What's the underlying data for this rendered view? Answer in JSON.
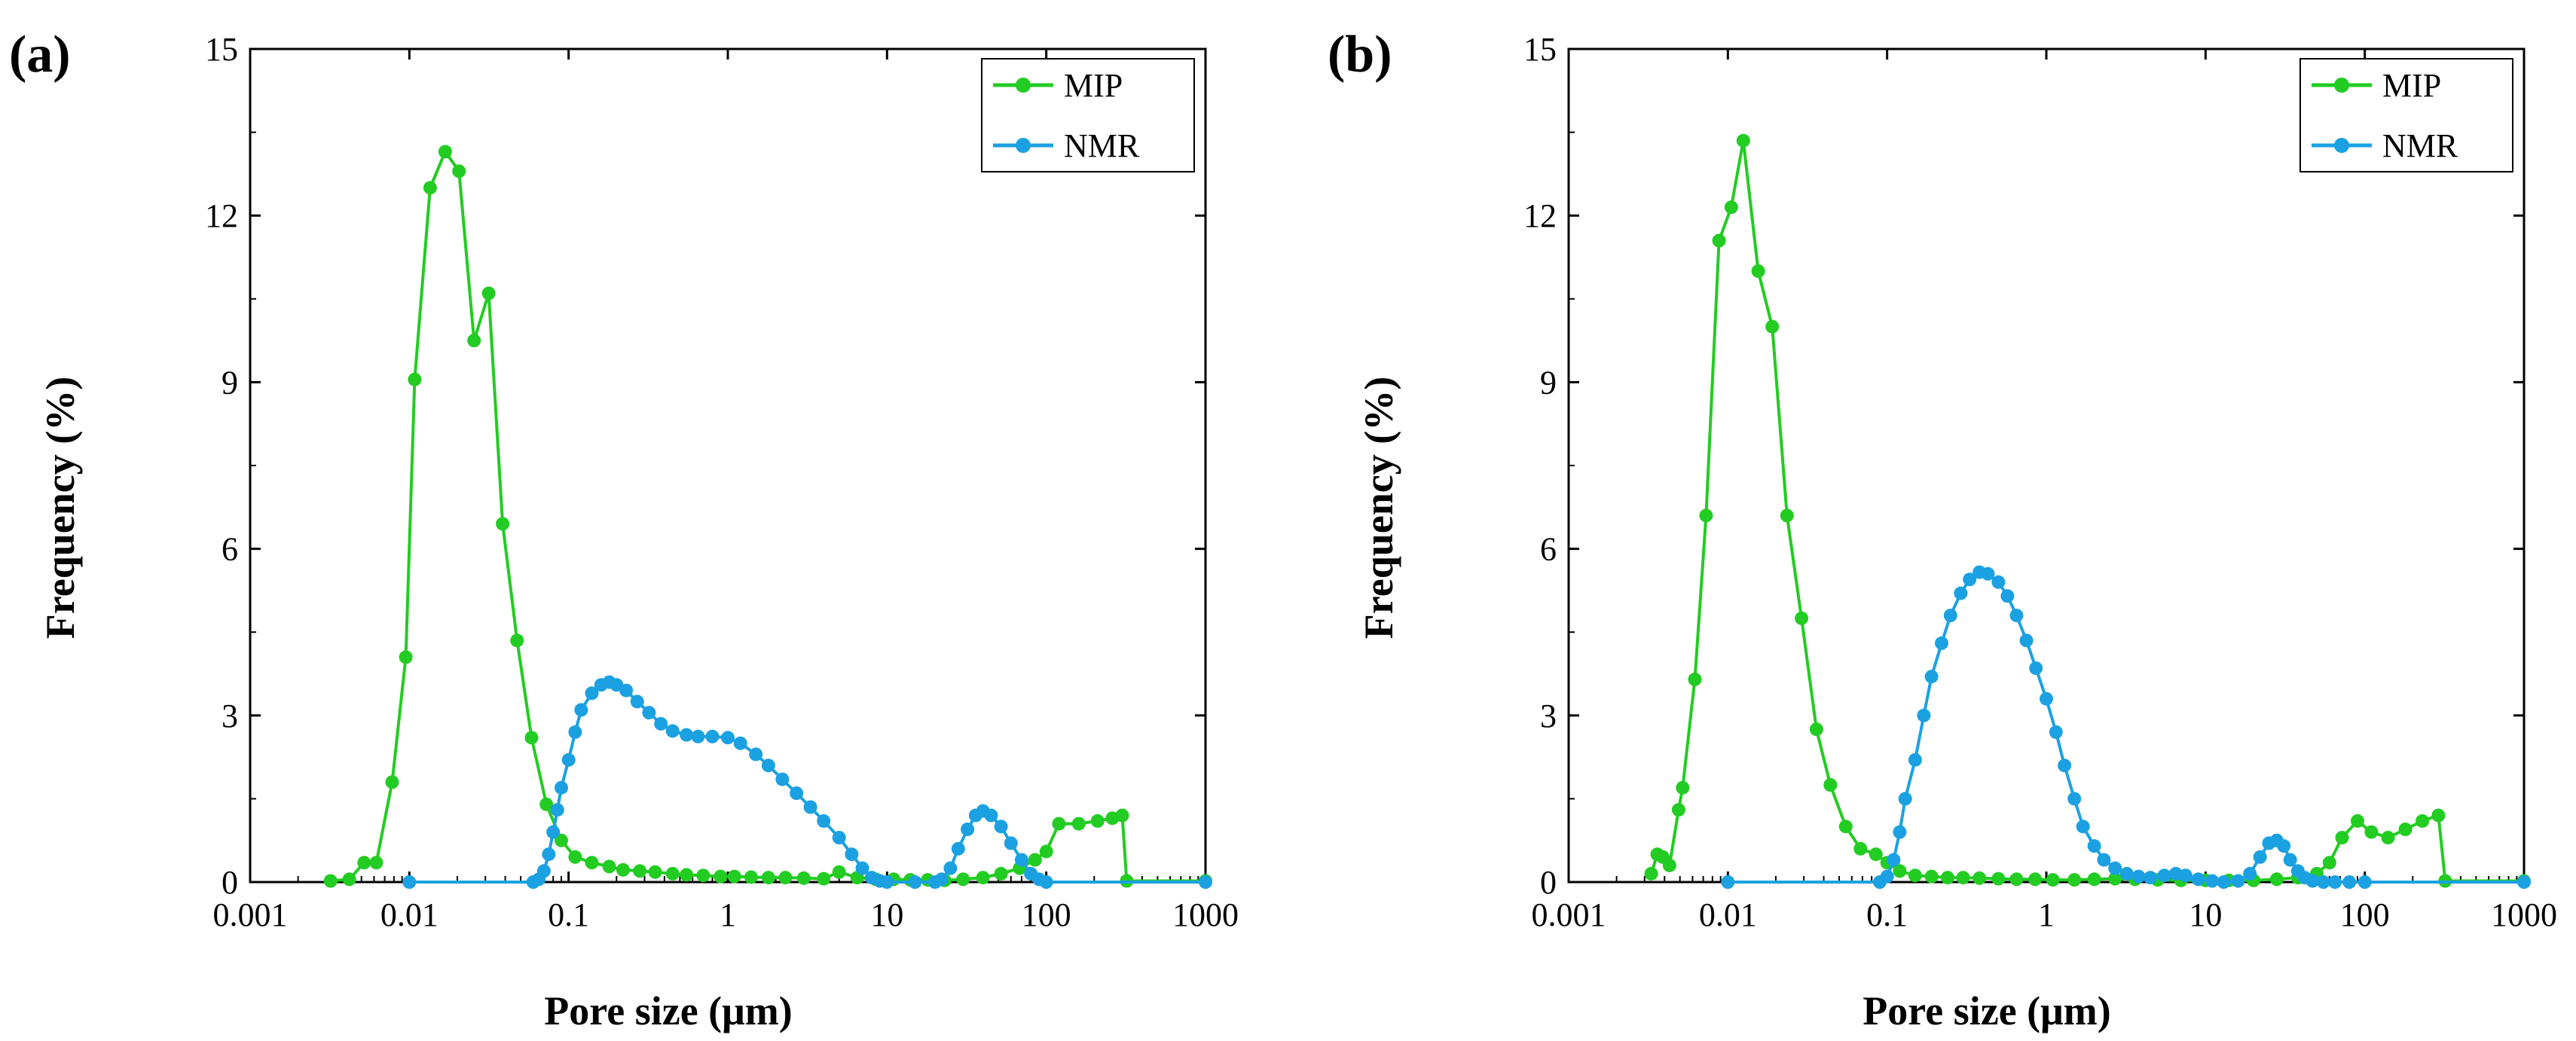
{
  "chart_data": [
    {
      "type": "line",
      "panel_label": "(a)",
      "xlabel": "Pore size (μm)",
      "ylabel": "Frequency (%)",
      "xscale": "log",
      "xlim": [
        0.001,
        1000
      ],
      "ylim": [
        0,
        15
      ],
      "xticks": [
        0.001,
        0.01,
        0.1,
        1,
        10,
        100,
        1000
      ],
      "xtick_labels": [
        "0.001",
        "0.01",
        "0.1",
        "1",
        "10",
        "100",
        "1000"
      ],
      "yticks": [
        0,
        3,
        6,
        9,
        12,
        15
      ],
      "ytick_labels": [
        "0",
        "3",
        "6",
        "9",
        "12",
        "15"
      ],
      "grid": false,
      "legend_position": "top-right",
      "series": [
        {
          "name": "MIP",
          "color": "#22cc22",
          "x": [
            0.0032,
            0.0042,
            0.0052,
            0.0062,
            0.0078,
            0.0095,
            0.0108,
            0.0135,
            0.0168,
            0.0205,
            0.0255,
            0.0315,
            0.0385,
            0.0475,
            0.0585,
            0.0725,
            0.09,
            0.11,
            0.14,
            0.18,
            0.22,
            0.28,
            0.35,
            0.45,
            0.55,
            0.7,
            0.9,
            1.1,
            1.4,
            1.8,
            2.3,
            3,
            4,
            5,
            6.5,
            8.5,
            11,
            14,
            18,
            23,
            30,
            40,
            52,
            68,
            85,
            100,
            120,
            160,
            210,
            260,
            300,
            320,
            1000
          ],
          "y": [
            0.02,
            0.05,
            0.35,
            0.35,
            1.8,
            4.05,
            9.05,
            12.5,
            13.15,
            12.8,
            9.75,
            10.6,
            6.45,
            4.35,
            2.6,
            1.4,
            0.75,
            0.45,
            0.35,
            0.28,
            0.22,
            0.2,
            0.18,
            0.15,
            0.13,
            0.12,
            0.1,
            0.1,
            0.09,
            0.08,
            0.08,
            0.07,
            0.06,
            0.18,
            0.08,
            0.05,
            0.05,
            0.04,
            0.04,
            0.03,
            0.05,
            0.08,
            0.15,
            0.25,
            0.4,
            0.55,
            1.05,
            1.05,
            1.1,
            1.15,
            1.2,
            0.02,
            0.02
          ]
        },
        {
          "name": "NMR",
          "color": "#1ba1e2",
          "x": [
            0.01,
            0.06,
            0.065,
            0.07,
            0.075,
            0.08,
            0.085,
            0.09,
            0.1,
            0.11,
            0.12,
            0.14,
            0.16,
            0.18,
            0.2,
            0.23,
            0.27,
            0.32,
            0.38,
            0.45,
            0.55,
            0.65,
            0.8,
            1,
            1.2,
            1.5,
            1.8,
            2.2,
            2.7,
            3.3,
            4,
            5,
            6,
            7,
            8,
            9,
            10,
            15,
            20,
            22,
            25,
            28,
            32,
            36,
            40,
            45,
            52,
            60,
            70,
            80,
            90,
            100,
            1000
          ],
          "y": [
            0,
            0,
            0.05,
            0.2,
            0.5,
            0.9,
            1.3,
            1.7,
            2.2,
            2.7,
            3.1,
            3.4,
            3.55,
            3.6,
            3.55,
            3.45,
            3.25,
            3.05,
            2.85,
            2.72,
            2.65,
            2.62,
            2.62,
            2.6,
            2.5,
            2.3,
            2.1,
            1.85,
            1.6,
            1.35,
            1.1,
            0.8,
            0.5,
            0.25,
            0.08,
            0.02,
            0,
            0,
            0,
            0.05,
            0.25,
            0.6,
            0.95,
            1.2,
            1.28,
            1.2,
            1.0,
            0.7,
            0.4,
            0.15,
            0.05,
            0,
            0
          ]
        }
      ]
    },
    {
      "type": "line",
      "panel_label": "(b)",
      "xlabel": "Pore size (μm)",
      "ylabel": "Frequency (%)",
      "xscale": "log",
      "xlim": [
        0.001,
        1000
      ],
      "ylim": [
        0,
        15
      ],
      "xticks": [
        0.001,
        0.01,
        0.1,
        1,
        10,
        100,
        1000
      ],
      "xtick_labels": [
        "0.001",
        "0.01",
        "0.1",
        "1",
        "10",
        "100",
        "1000"
      ],
      "yticks": [
        0,
        3,
        6,
        9,
        12,
        15
      ],
      "ytick_labels": [
        "0",
        "3",
        "6",
        "9",
        "12",
        "15"
      ],
      "grid": false,
      "legend_position": "top-right",
      "series": [
        {
          "name": "MIP",
          "color": "#22cc22",
          "x": [
            0.0033,
            0.0036,
            0.0039,
            0.0043,
            0.0049,
            0.0052,
            0.0062,
            0.0073,
            0.0088,
            0.0105,
            0.0125,
            0.0155,
            0.019,
            0.0235,
            0.029,
            0.036,
            0.044,
            0.055,
            0.068,
            0.085,
            0.1,
            0.12,
            0.15,
            0.19,
            0.24,
            0.3,
            0.38,
            0.5,
            0.65,
            0.85,
            1.1,
            1.5,
            2,
            2.7,
            3.6,
            5,
            7,
            10,
            14,
            20,
            28,
            38,
            50,
            60,
            72,
            90,
            110,
            140,
            180,
            230,
            290,
            320,
            1000
          ],
          "y": [
            0.15,
            0.5,
            0.45,
            0.3,
            1.3,
            1.7,
            3.65,
            6.6,
            11.55,
            12.15,
            13.35,
            11.0,
            10.0,
            6.6,
            4.75,
            2.75,
            1.75,
            1.0,
            0.6,
            0.5,
            0.35,
            0.2,
            0.12,
            0.1,
            0.08,
            0.08,
            0.07,
            0.06,
            0.05,
            0.05,
            0.04,
            0.04,
            0.05,
            0.06,
            0.05,
            0.04,
            0.03,
            0.03,
            0.03,
            0.03,
            0.05,
            0.08,
            0.15,
            0.35,
            0.8,
            1.1,
            0.9,
            0.8,
            0.95,
            1.1,
            1.2,
            0.02,
            0.02
          ]
        },
        {
          "name": "NMR",
          "color": "#1ba1e2",
          "x": [
            0.01,
            0.09,
            0.1,
            0.11,
            0.12,
            0.13,
            0.15,
            0.17,
            0.19,
            0.22,
            0.25,
            0.29,
            0.33,
            0.38,
            0.43,
            0.5,
            0.57,
            0.65,
            0.75,
            0.86,
            1,
            1.15,
            1.3,
            1.5,
            1.7,
            2,
            2.3,
            2.7,
            3.2,
            3.8,
            4.5,
            5.5,
            6.5,
            7.5,
            9,
            11,
            13,
            16,
            19,
            22,
            25,
            28,
            31,
            34,
            38,
            42,
            47,
            55,
            65,
            80,
            100,
            1000
          ],
          "y": [
            0,
            0,
            0.1,
            0.4,
            0.9,
            1.5,
            2.2,
            3.0,
            3.7,
            4.3,
            4.8,
            5.2,
            5.45,
            5.58,
            5.55,
            5.4,
            5.15,
            4.8,
            4.35,
            3.85,
            3.3,
            2.7,
            2.1,
            1.5,
            1.0,
            0.65,
            0.4,
            0.25,
            0.15,
            0.1,
            0.08,
            0.12,
            0.15,
            0.12,
            0.05,
            0.02,
            0,
            0.02,
            0.15,
            0.45,
            0.7,
            0.75,
            0.65,
            0.4,
            0.2,
            0.08,
            0.02,
            0,
            0,
            0,
            0,
            0
          ]
        }
      ]
    }
  ]
}
